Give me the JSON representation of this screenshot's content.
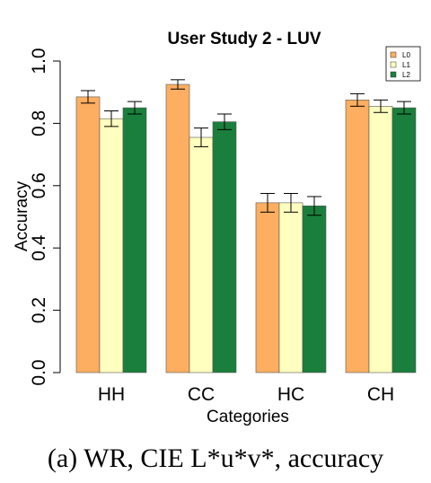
{
  "chart_data": {
    "type": "bar",
    "title": "User  Study 2 - LUV",
    "xlabel": "Categories",
    "ylabel": "Accuracy",
    "categories": [
      "HH",
      "CC",
      "HC",
      "CH"
    ],
    "ylim": [
      0.0,
      1.0
    ],
    "yticks": [
      "0.0",
      "0.2",
      "0.4",
      "0.6",
      "0.8",
      "1.0"
    ],
    "legend_position": "top-right",
    "series": [
      {
        "name": "L0",
        "color": "#fdae61",
        "values": [
          0.885,
          0.925,
          0.545,
          0.875
        ],
        "error": [
          0.02,
          0.015,
          0.03,
          0.02
        ]
      },
      {
        "name": "L1",
        "color": "#ffffbf",
        "values": [
          0.815,
          0.755,
          0.545,
          0.855
        ],
        "error": [
          0.025,
          0.03,
          0.03,
          0.02
        ]
      },
      {
        "name": "L2",
        "color": "#1a7f3c",
        "values": [
          0.85,
          0.805,
          0.535,
          0.85
        ],
        "error": [
          0.02,
          0.025,
          0.03,
          0.02
        ]
      }
    ]
  },
  "caption": "(a)  WR, CIE L*u*v*, accuracy"
}
